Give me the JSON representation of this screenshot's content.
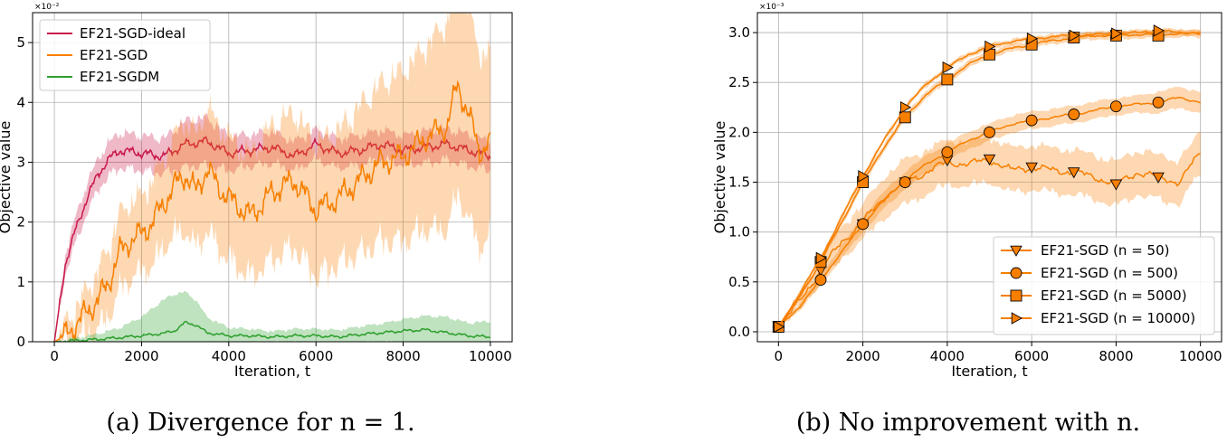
{
  "chart_data": [
    {
      "type": "line",
      "caption": "(a) Divergence for n = 1.",
      "xlabel": "Iteration, t",
      "ylabel": "Objective value",
      "scale_label": "×10⁻²",
      "xlim": [
        -500,
        10500
      ],
      "ylim": [
        0,
        5.5
      ],
      "xticks": [
        0,
        2000,
        4000,
        6000,
        8000,
        10000
      ],
      "yticks": [
        0,
        1,
        2,
        3,
        4,
        5
      ],
      "grid": true,
      "legend_position": "top-left",
      "series": [
        {
          "name": "EF21-SGD-ideal",
          "color": "#c9184a",
          "x": [
            0,
            250,
            500,
            750,
            1000,
            1250,
            1500,
            2000,
            2500,
            3000,
            3500,
            4000,
            4500,
            5000,
            5500,
            6000,
            6500,
            7000,
            7500,
            8000,
            8500,
            9000,
            9500,
            10000
          ],
          "y": [
            0,
            1.3,
            1.9,
            2.4,
            2.8,
            3.05,
            3.2,
            3.15,
            3.1,
            3.3,
            3.35,
            3.15,
            3.2,
            3.25,
            3.1,
            3.3,
            3.15,
            3.2,
            3.3,
            3.2,
            3.25,
            3.3,
            3.2,
            3.1
          ],
          "band": [
            0,
            0.12,
            0.18,
            0.2,
            0.22,
            0.24,
            0.25,
            0.25,
            0.25,
            0.35,
            0.35,
            0.25,
            0.22,
            0.22,
            0.2,
            0.2,
            0.2,
            0.2,
            0.2,
            0.2,
            0.22,
            0.22,
            0.22,
            0.2
          ]
        },
        {
          "name": "EF21-SGD",
          "color": "#f77f00",
          "x": [
            0,
            250,
            500,
            750,
            1000,
            1250,
            1500,
            1750,
            2000,
            2250,
            2500,
            2750,
            3000,
            3250,
            3500,
            3750,
            4000,
            4500,
            5000,
            5500,
            6000,
            6500,
            7000,
            7500,
            8000,
            8500,
            9000,
            9250,
            9500,
            9750,
            10000
          ],
          "y": [
            0,
            0.1,
            0.3,
            0.5,
            0.7,
            1.0,
            1.5,
            1.7,
            1.8,
            2.0,
            2.3,
            2.6,
            2.8,
            2.5,
            2.9,
            2.6,
            2.4,
            2.1,
            2.5,
            2.7,
            2.2,
            2.4,
            2.7,
            3.0,
            3.1,
            3.4,
            3.6,
            4.3,
            3.8,
            3.2,
            3.3
          ],
          "band": [
            0,
            0.05,
            0.15,
            0.25,
            0.35,
            0.45,
            0.5,
            0.5,
            0.5,
            0.6,
            0.6,
            0.7,
            0.8,
            0.8,
            0.9,
            0.9,
            0.9,
            0.9,
            1.0,
            1.0,
            1.0,
            1.0,
            1.1,
            1.2,
            1.3,
            1.4,
            1.6,
            1.7,
            1.6,
            1.5,
            1.4
          ]
        },
        {
          "name": "EF21-SGDM",
          "color": "#2ca02c",
          "x": [
            0,
            500,
            1000,
            1500,
            2000,
            2500,
            2750,
            3000,
            3250,
            3500,
            4000,
            4500,
            5000,
            5500,
            6000,
            6500,
            7000,
            7500,
            8000,
            8500,
            9000,
            9500,
            10000
          ],
          "y": [
            0,
            0.02,
            0.04,
            0.07,
            0.1,
            0.14,
            0.18,
            0.32,
            0.28,
            0.15,
            0.1,
            0.1,
            0.08,
            0.1,
            0.1,
            0.08,
            0.12,
            0.15,
            0.18,
            0.2,
            0.15,
            0.1,
            0.08
          ],
          "band": [
            0,
            0.03,
            0.08,
            0.15,
            0.3,
            0.55,
            0.6,
            0.5,
            0.4,
            0.25,
            0.12,
            0.1,
            0.08,
            0.1,
            0.1,
            0.1,
            0.12,
            0.14,
            0.18,
            0.22,
            0.25,
            0.2,
            0.25
          ]
        }
      ]
    },
    {
      "type": "line",
      "caption": "(b) No improvement with n.",
      "xlabel": "Iteration, t",
      "ylabel": "Objective value",
      "scale_label": "×10⁻³",
      "xlim": [
        -500,
        10500
      ],
      "ylim": [
        -0.1,
        3.2
      ],
      "xticks": [
        0,
        2000,
        4000,
        6000,
        8000,
        10000
      ],
      "yticks": [
        0.0,
        0.5,
        1.0,
        1.5,
        2.0,
        2.5,
        3.0
      ],
      "grid": true,
      "legend_position": "bottom-right",
      "series": [
        {
          "name": "EF21-SGD (n = 50)",
          "marker": "triangle-down",
          "color": "#f77f00",
          "x": [
            0,
            500,
            1000,
            1500,
            2000,
            2500,
            3000,
            3500,
            4000,
            4500,
            5000,
            5500,
            6000,
            6500,
            7000,
            7500,
            8000,
            8500,
            9000,
            9500,
            10000
          ],
          "y": [
            0.05,
            0.3,
            0.62,
            0.9,
            1.1,
            1.35,
            1.5,
            1.6,
            1.7,
            1.68,
            1.73,
            1.62,
            1.65,
            1.62,
            1.6,
            1.55,
            1.48,
            1.6,
            1.55,
            1.5,
            1.8
          ],
          "band": [
            0.02,
            0.05,
            0.1,
            0.14,
            0.15,
            0.18,
            0.2,
            0.2,
            0.2,
            0.2,
            0.2,
            0.2,
            0.2,
            0.2,
            0.2,
            0.2,
            0.2,
            0.2,
            0.2,
            0.2,
            0.18
          ],
          "marker_x": [
            0,
            1000,
            2000,
            3000,
            4000,
            5000,
            6000,
            7000,
            8000,
            9000
          ],
          "marker_y": [
            0.05,
            0.62,
            1.08,
            1.5,
            1.72,
            1.73,
            1.65,
            1.6,
            1.48,
            1.55
          ]
        },
        {
          "name": "EF21-SGD (n = 500)",
          "marker": "circle",
          "color": "#f77f00",
          "x": [
            0,
            500,
            1000,
            1500,
            2000,
            2500,
            3000,
            3500,
            4000,
            4500,
            5000,
            5500,
            6000,
            6500,
            7000,
            7500,
            8000,
            8500,
            9000,
            9500,
            10000
          ],
          "y": [
            0.05,
            0.25,
            0.52,
            0.8,
            1.08,
            1.32,
            1.52,
            1.68,
            1.8,
            1.92,
            2.0,
            2.08,
            2.12,
            2.15,
            2.18,
            2.22,
            2.26,
            2.28,
            2.3,
            2.35,
            2.3
          ],
          "band": [
            0.01,
            0.03,
            0.05,
            0.06,
            0.07,
            0.08,
            0.08,
            0.08,
            0.08,
            0.08,
            0.08,
            0.08,
            0.08,
            0.08,
            0.08,
            0.08,
            0.08,
            0.08,
            0.1,
            0.1,
            0.1
          ],
          "marker_x": [
            0,
            1000,
            2000,
            3000,
            4000,
            5000,
            6000,
            7000,
            8000,
            9000
          ],
          "marker_y": [
            0.05,
            0.52,
            1.08,
            1.5,
            1.8,
            2.0,
            2.12,
            2.18,
            2.26,
            2.3
          ]
        },
        {
          "name": "EF21-SGD (n = 5000)",
          "marker": "square",
          "color": "#f77f00",
          "x": [
            0,
            500,
            1000,
            1500,
            2000,
            2500,
            3000,
            3500,
            4000,
            4500,
            5000,
            5500,
            6000,
            6500,
            7000,
            7500,
            8000,
            8500,
            9000,
            9500,
            10000
          ],
          "y": [
            0.05,
            0.35,
            0.7,
            1.1,
            1.5,
            1.85,
            2.15,
            2.38,
            2.53,
            2.68,
            2.78,
            2.84,
            2.88,
            2.92,
            2.95,
            2.97,
            2.97,
            2.98,
            2.98,
            2.99,
            2.99
          ],
          "band": [
            0.01,
            0.02,
            0.02,
            0.03,
            0.03,
            0.03,
            0.03,
            0.03,
            0.03,
            0.03,
            0.03,
            0.03,
            0.03,
            0.03,
            0.03,
            0.03,
            0.03,
            0.03,
            0.03,
            0.03,
            0.03
          ],
          "marker_x": [
            0,
            1000,
            2000,
            3000,
            4000,
            5000,
            6000,
            7000,
            8000,
            9000
          ],
          "marker_y": [
            0.05,
            0.7,
            1.5,
            2.15,
            2.53,
            2.78,
            2.88,
            2.95,
            2.97,
            2.97
          ]
        },
        {
          "name": "EF21-SGD (n = 10000)",
          "marker": "triangle-right",
          "color": "#f77f00",
          "x": [
            0,
            500,
            1000,
            1500,
            2000,
            2500,
            3000,
            3500,
            4000,
            4500,
            5000,
            5500,
            6000,
            6500,
            7000,
            7500,
            8000,
            8500,
            9000,
            9500,
            10000
          ],
          "y": [
            0.05,
            0.38,
            0.74,
            1.15,
            1.56,
            1.92,
            2.25,
            2.48,
            2.65,
            2.78,
            2.86,
            2.91,
            2.94,
            2.96,
            2.97,
            2.98,
            2.99,
            3.0,
            3.02,
            3.0,
            3.0
          ],
          "band": [
            0.01,
            0.02,
            0.02,
            0.02,
            0.02,
            0.02,
            0.02,
            0.02,
            0.02,
            0.02,
            0.02,
            0.02,
            0.02,
            0.02,
            0.02,
            0.02,
            0.02,
            0.02,
            0.02,
            0.02,
            0.02
          ],
          "marker_x": [
            0,
            1000,
            2000,
            3000,
            4000,
            5000,
            6000,
            7000,
            8000,
            9000
          ],
          "marker_y": [
            0.05,
            0.74,
            1.56,
            2.25,
            2.65,
            2.86,
            2.94,
            2.97,
            2.99,
            3.02
          ]
        }
      ]
    }
  ]
}
